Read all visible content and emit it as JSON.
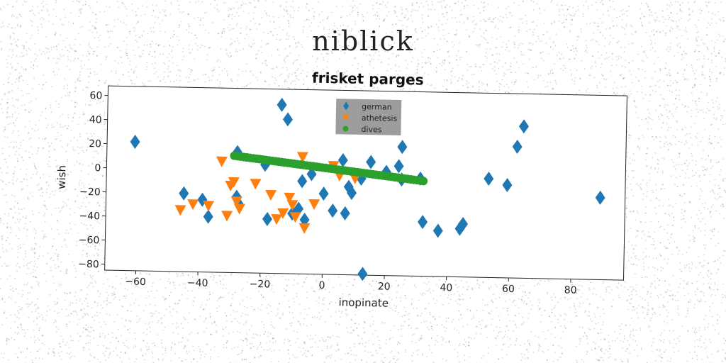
{
  "suptitle": "niblick",
  "chart_data": {
    "type": "scatter",
    "title": "frisket parges",
    "xlabel": "inopinate",
    "ylabel": "wish",
    "xlim": [
      -70,
      97
    ],
    "ylim": [
      -85,
      68
    ],
    "xticks": [
      "−60",
      "−40",
      "−20",
      "0",
      "20",
      "40",
      "60",
      "80"
    ],
    "xtick_values": [
      -60,
      -40,
      -20,
      0,
      20,
      40,
      60,
      80
    ],
    "yticks": [
      "60",
      "40",
      "20",
      "0",
      "−20",
      "−40",
      "−60",
      "−80"
    ],
    "ytick_values": [
      60,
      40,
      20,
      0,
      -20,
      -40,
      -60,
      -80
    ],
    "grid": false,
    "legend_placement": "top-center",
    "series": [
      {
        "name": "german",
        "color": "#1f77b4",
        "marker": "diamond",
        "points": [
          [
            -61,
            22
          ],
          [
            -45,
            -20
          ],
          [
            -39,
            -25
          ],
          [
            -37,
            -39
          ],
          [
            -28,
            15
          ],
          [
            -28,
            -22
          ],
          [
            -27,
            -29
          ],
          [
            -19,
            5
          ],
          [
            -18,
            -40
          ],
          [
            -14,
            55
          ],
          [
            -12,
            43
          ],
          [
            -10,
            -35
          ],
          [
            -8,
            -31
          ],
          [
            -7,
            -8
          ],
          [
            -6,
            -40
          ],
          [
            -4,
            -2
          ],
          [
            0,
            -18
          ],
          [
            3,
            -32
          ],
          [
            6,
            10
          ],
          [
            7,
            -34
          ],
          [
            8,
            -12
          ],
          [
            9,
            -17
          ],
          [
            12,
            -5
          ],
          [
            13,
            -84
          ],
          [
            15,
            9
          ],
          [
            20,
            1
          ],
          [
            24,
            6
          ],
          [
            25,
            22
          ],
          [
            25,
            -5
          ],
          [
            31,
            -4
          ],
          [
            32,
            -40
          ],
          [
            37,
            -47
          ],
          [
            44,
            -45
          ],
          [
            45,
            -41
          ],
          [
            53,
            -3
          ],
          [
            59,
            -8
          ],
          [
            62,
            24
          ],
          [
            64,
            41
          ],
          [
            89,
            -17
          ]
        ]
      },
      {
        "name": "athetesis",
        "color": "#ff7f0e",
        "marker": "triangle-down",
        "points": [
          [
            -46,
            -34
          ],
          [
            -42,
            -29
          ],
          [
            -37,
            -30
          ],
          [
            -33,
            7
          ],
          [
            -31,
            -38
          ],
          [
            -30,
            -13
          ],
          [
            -29,
            -10
          ],
          [
            -28,
            -26
          ],
          [
            -27,
            -32
          ],
          [
            -22,
            -11
          ],
          [
            -17,
            -20
          ],
          [
            -15,
            -40
          ],
          [
            -13,
            -35
          ],
          [
            -11,
            -22
          ],
          [
            -10,
            -28
          ],
          [
            -9,
            -38
          ],
          [
            -7,
            12
          ],
          [
            -6,
            -47
          ],
          [
            -3,
            -27
          ],
          [
            3,
            5
          ],
          [
            5,
            -3
          ],
          [
            10,
            -5
          ]
        ]
      },
      {
        "name": "dives",
        "color": "#2ca02c",
        "marker": "circle",
        "line": {
          "x_start": -29,
          "y_start": 12,
          "x_end": 32,
          "y_end": -6,
          "count": 61
        }
      }
    ]
  }
}
